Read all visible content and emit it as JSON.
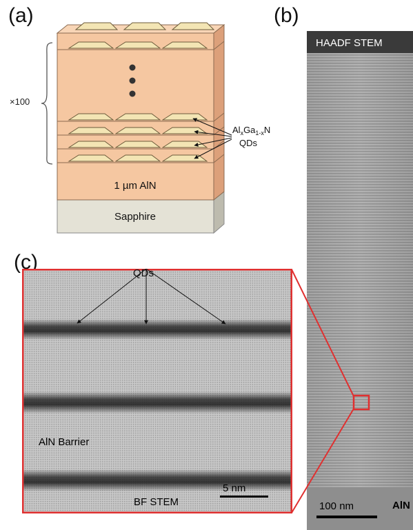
{
  "panels": {
    "a": {
      "letter": "(a)",
      "repeat_label": "×100",
      "qd_label_line1_main": "Al",
      "qd_label_sub_x": "x",
      "qd_label_mid": "Ga",
      "qd_label_sub_1x": "1-x",
      "qd_label_end": "N",
      "qd_label_line2": "QDs",
      "layer_aln": "1 µm AlN",
      "layer_substrate": "Sapphire"
    },
    "b": {
      "letter": "(b)",
      "mode_label": "HAADF STEM",
      "scale_label": "100 nm",
      "bottom_label": "AlN"
    },
    "c": {
      "letter": "(c)",
      "qds_label": "QDs",
      "barrier_label": "AlN Barrier",
      "scale_label": "5 nm",
      "mode_label": "BF STEM"
    }
  },
  "colors": {
    "aln_fill": "#f5c7a1",
    "aln_side": "#dca07a",
    "aln_top": "#f8d5b6",
    "qd_fill": "#f3e5b4",
    "sapphire_fill": "#e4e2d6",
    "sapphire_side": "#bdbbae",
    "highlight_red": "#e03030"
  }
}
